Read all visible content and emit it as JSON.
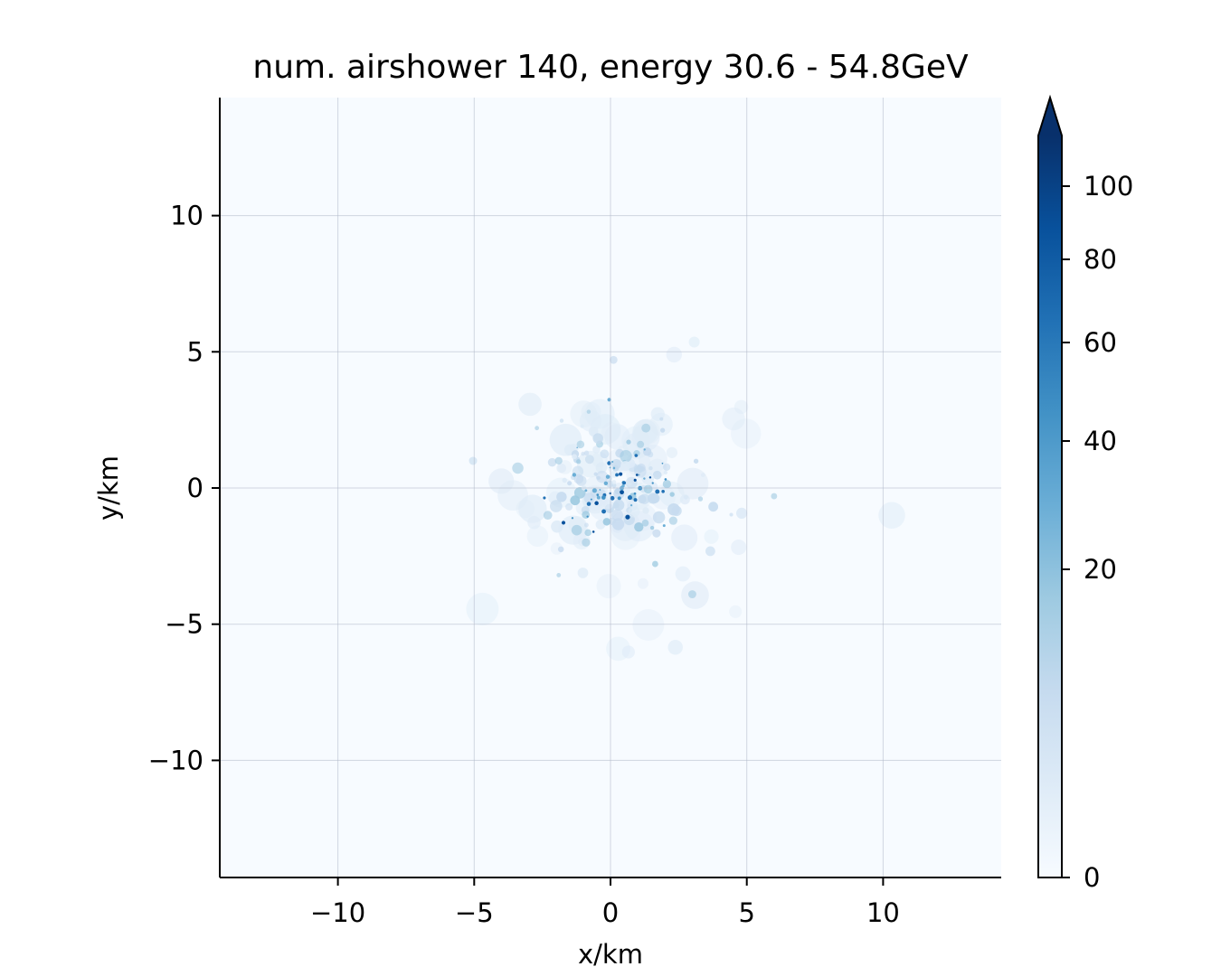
{
  "chart_data": {
    "type": "heatmap",
    "title": "num. airshower 140, energy 30.6 - 54.8GeV",
    "xlabel": "x/km",
    "ylabel": "y/km",
    "xlim": [
      -14.3,
      14.3
    ],
    "ylim": [
      -14.3,
      14.3
    ],
    "xticks": [
      -10,
      -5,
      0,
      5,
      10
    ],
    "yticks": [
      -10,
      -5,
      0,
      5,
      10
    ],
    "xtick_labels": [
      "−10",
      "−5",
      "0",
      "5",
      "10"
    ],
    "ytick_labels": [
      "−10",
      "−5",
      "0",
      "5",
      "10"
    ],
    "grid": true,
    "colormap": "Blues",
    "background_color": "#f7fbff",
    "colorbar": {
      "extend": "max",
      "range": [
        0,
        110
      ],
      "ticks": [
        0,
        20,
        40,
        60,
        80,
        100
      ],
      "tick_labels": [
        "0",
        "20",
        "40",
        "60",
        "80",
        "100"
      ]
    },
    "shower_center_km": [
      0.2,
      0.0
    ],
    "shower_core_radius_km": 2.0
  }
}
